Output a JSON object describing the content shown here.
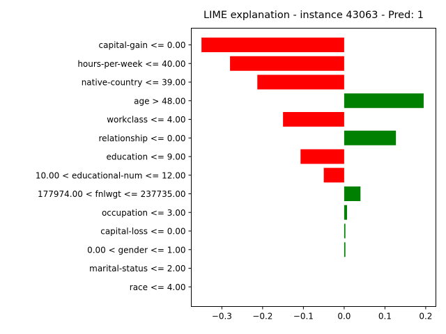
{
  "chart_data": {
    "type": "bar",
    "orientation": "horizontal",
    "title": "LIME explanation - instance 43063 - Pred: 1",
    "xlabel": "",
    "ylabel": "",
    "xlim": [
      -0.375,
      0.225
    ],
    "xticks": [
      -0.3,
      -0.2,
      -0.1,
      0.0,
      0.1,
      0.2
    ],
    "xtick_labels": [
      "−0.3",
      "−0.2",
      "−0.1",
      "0.0",
      "0.1",
      "0.2"
    ],
    "grid": false,
    "legend": "none",
    "positive_color": "#008000",
    "negative_color": "#ff0000",
    "categories": [
      "capital-gain <= 0.00",
      "hours-per-week <= 40.00",
      "native-country <= 39.00",
      "age > 48.00",
      "workclass <= 4.00",
      "relationship <= 0.00",
      "education <= 9.00",
      "10.00 < educational-num <= 12.00",
      "177974.00 < fnlwgt <= 237735.00",
      "occupation <= 3.00",
      "capital-loss <= 0.00",
      "0.00 < gender <= 1.00",
      "marital-status <= 2.00",
      "race <= 4.00"
    ],
    "values": [
      -0.35,
      -0.28,
      -0.213,
      0.195,
      -0.15,
      0.127,
      -0.107,
      -0.05,
      0.04,
      0.007,
      0.003,
      0.003,
      0.0,
      0.0
    ]
  }
}
